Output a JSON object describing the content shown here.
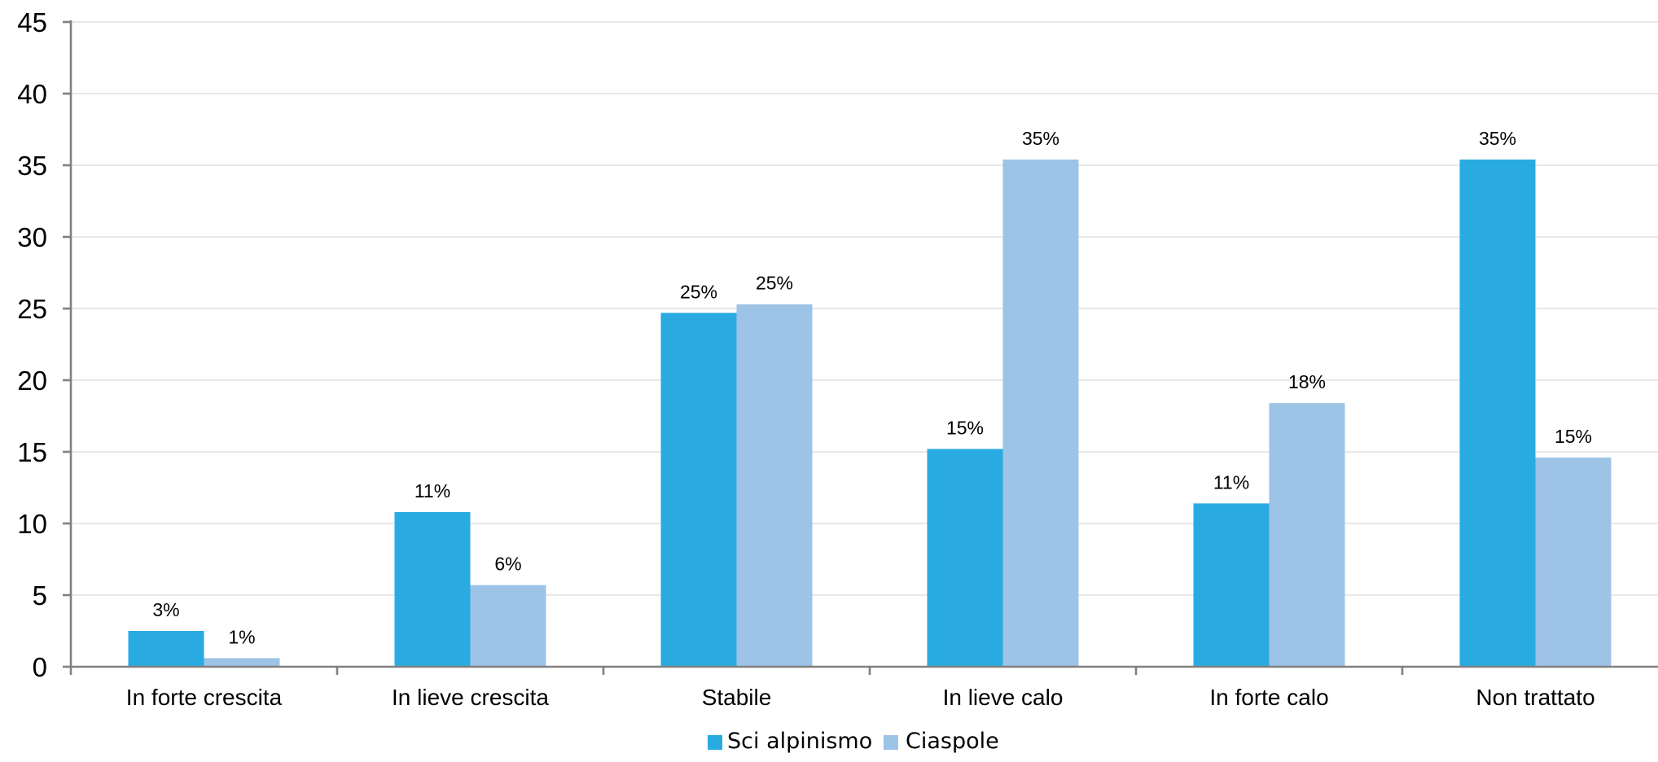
{
  "chart_data": {
    "type": "bar",
    "categories": [
      "In forte crescita",
      "In lieve crescita",
      "Stabile",
      "In lieve calo",
      "In forte calo",
      "Non trattato"
    ],
    "series": [
      {
        "name": "Sci alpinismo",
        "color": "#29abe2",
        "values": [
          2.5,
          10.8,
          24.7,
          15.2,
          11.4,
          35.4
        ],
        "labels": [
          "3%",
          "11%",
          "25%",
          "15%",
          "11%",
          "35%"
        ]
      },
      {
        "name": "Ciaspole",
        "color": "#9dc3e6",
        "values": [
          0.6,
          5.7,
          25.3,
          35.4,
          18.4,
          14.6
        ],
        "labels": [
          "1%",
          "6%",
          "25%",
          "35%",
          "18%",
          "15%"
        ]
      }
    ],
    "y_ticks": [
      "0",
      "5",
      "10",
      "15",
      "20",
      "25",
      "30",
      "35",
      "40",
      "45"
    ],
    "ylim": [
      0,
      45
    ],
    "grid": true,
    "legend": "bottom-center",
    "title": "",
    "xlabel": "",
    "ylabel": ""
  }
}
